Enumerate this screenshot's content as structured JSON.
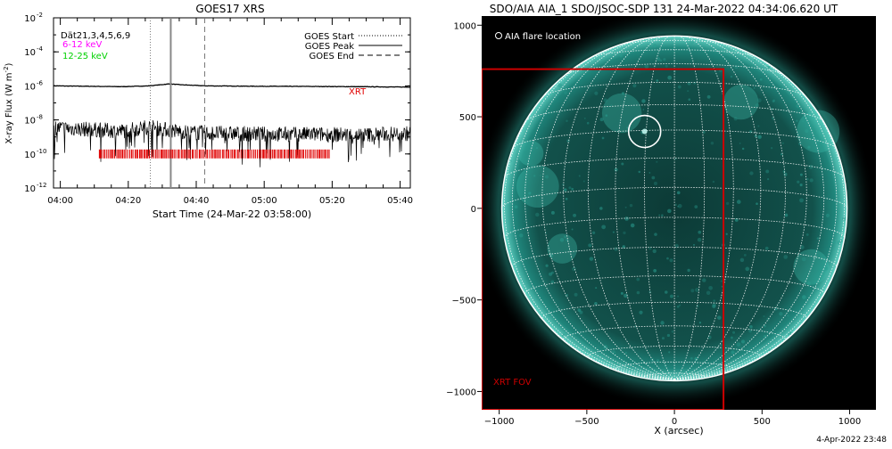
{
  "footer": {
    "timestamp": "4-Apr-2022 23:48"
  },
  "chart_data": [
    {
      "type": "line",
      "title": "GOES17 XRS",
      "xlabel": "Start Time (24-Mar-22 03:58:00)",
      "ylabel": "X-ray Flux (W m",
      "ylabel_sup": "-2",
      "ylabel_tail": ")",
      "x_range": [
        "03:58",
        "05:43"
      ],
      "ylim": [
        1e-12,
        0.01
      ],
      "yscale": "log",
      "x_ticks": [
        {
          "label": "04:00",
          "min": 2
        },
        {
          "label": "04:20",
          "min": 22
        },
        {
          "label": "04:40",
          "min": 42
        },
        {
          "label": "05:00",
          "min": 62
        },
        {
          "label": "05:20",
          "min": 82
        },
        {
          "label": "05:40",
          "min": 102
        }
      ],
      "y_ticks": [
        {
          "base": "10",
          "exp": "-2",
          "value": 0.01
        },
        {
          "base": "10",
          "exp": "-4",
          "value": 0.0001
        },
        {
          "base": "10",
          "exp": "-6",
          "value": 1e-06
        },
        {
          "base": "10",
          "exp": "-8",
          "value": 1e-08
        },
        {
          "base": "10",
          "exp": "-10",
          "value": 1e-10
        },
        {
          "base": "10",
          "exp": "-12",
          "value": 1e-12
        }
      ],
      "channels_label": "Dät21,3,4,5,6,9",
      "energy_bands": [
        {
          "label": "6-12 keV",
          "color": "#ff00ff"
        },
        {
          "label": "12-25 keV",
          "color": "#00d000"
        }
      ],
      "legend": [
        {
          "label": "GOES Start",
          "style": "dotted"
        },
        {
          "label": "GOES Peak",
          "style": "solid"
        },
        {
          "label": "GOES End",
          "style": "dashed"
        }
      ],
      "event_lines": [
        {
          "name": "GOES Start",
          "min": 28.5
        },
        {
          "name": "GOES Peak",
          "min": 34.5
        },
        {
          "name": "GOES End",
          "min": 44.5
        }
      ],
      "series": [
        {
          "name": "long-channel",
          "points": [
            [
              0,
              1e-06
            ],
            [
              10,
              9.5e-07
            ],
            [
              20,
              9e-07
            ],
            [
              28,
              1e-06
            ],
            [
              34,
              1.3e-06
            ],
            [
              38,
              1.15e-06
            ],
            [
              45,
              1e-06
            ],
            [
              60,
              9.5e-07
            ],
            [
              80,
              9.2e-07
            ],
            [
              95,
              8.8e-07
            ],
            [
              105,
              8.5e-07
            ]
          ]
        },
        {
          "name": "short-channel",
          "points": [
            [
              0,
              3.5e-09
            ],
            [
              10,
              2.8e-09
            ],
            [
              20,
              2.2e-09
            ],
            [
              28,
              4e-09
            ],
            [
              34,
              2.5e-09
            ],
            [
              40,
              1.8e-09
            ],
            [
              50,
              1.6e-09
            ],
            [
              60,
              1.5e-09
            ],
            [
              70,
              1.4e-09
            ],
            [
              80,
              1.4e-09
            ],
            [
              90,
              1.3e-09
            ],
            [
              105,
              1.6e-09
            ]
          ]
        }
      ],
      "xrt_label": "XRT",
      "xrt_obs": {
        "start_min": 13.5,
        "end_min": 81.5,
        "level": 1e-10,
        "color": "#e00000"
      }
    },
    {
      "type": "image",
      "title": "SDO/AIA AIA_1 SDO/JSOC-SDP 131 24-Mar-2022 04:34:06.620 UT",
      "xlabel": "X (arcsec)",
      "xlim": [
        -1100,
        1150
      ],
      "ylim": [
        -1100,
        1050
      ],
      "x_ticks": [
        -1000,
        -500,
        0,
        500,
        1000
      ],
      "y_ticks": [
        1000,
        500,
        0,
        -500,
        -1000
      ],
      "flare_legend": "AIA flare location",
      "flare_location": {
        "x": -170,
        "y": 420
      },
      "fov_label": "XRT FOV",
      "fov_box": {
        "x0": -1100,
        "x1": 280,
        "y0": -1100,
        "y1": 760
      },
      "fov_color": "#cc0000",
      "disk_color": "#1e8c82"
    }
  ]
}
